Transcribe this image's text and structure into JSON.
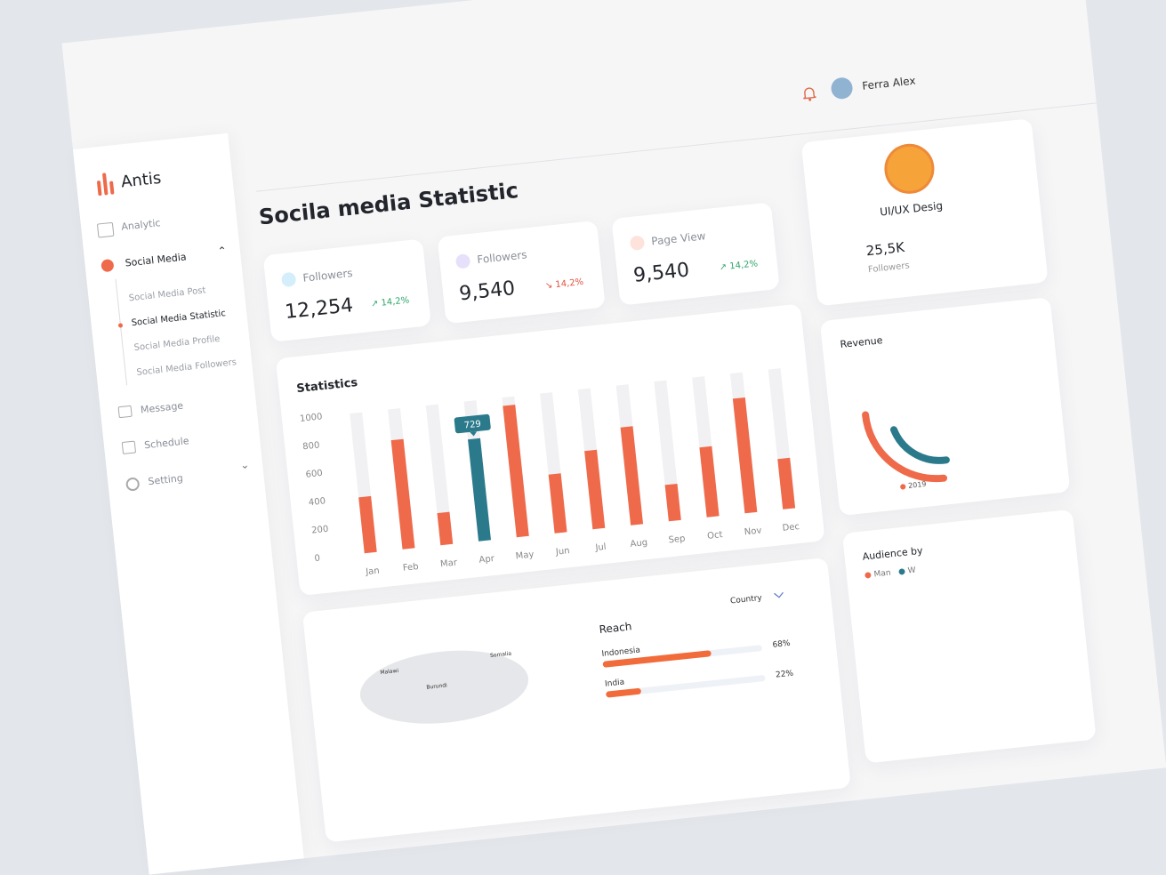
{
  "sidebar": {
    "brand": "Antis",
    "items": [
      "Analytic",
      "Social Media",
      "Message",
      "Schedule",
      "Setting"
    ],
    "subitems": [
      "Social Media Post",
      "Social Media Statistic",
      "Social Media Profile",
      "Social Media Followers"
    ]
  },
  "header": {
    "user": "Ferra Alex"
  },
  "page_title": "Socila media Statistic",
  "stats": [
    {
      "label": "Followers",
      "value": "12,254",
      "change": "14,2%"
    },
    {
      "label": "Followers",
      "value": "9,540",
      "change": "14,2%"
    },
    {
      "label": "Page View",
      "value": "9,540",
      "change": "14,2%"
    }
  ],
  "chart_data": {
    "type": "bar",
    "title": "Statistics",
    "categories": [
      "Jan",
      "Feb",
      "Mar",
      "Apr",
      "May",
      "Jun",
      "Jul",
      "Aug",
      "Sep",
      "Oct",
      "Nov",
      "Dec"
    ],
    "values": [
      400,
      780,
      230,
      729,
      940,
      420,
      560,
      700,
      260,
      500,
      820,
      360
    ],
    "color": "#ee6a4a",
    "active": 3,
    "active_color": "#2b7a8c",
    "track_color": "#f1f1f3",
    "ylim": [
      0,
      1000
    ],
    "yticks": [
      0,
      200,
      400,
      600,
      800,
      1000
    ]
  },
  "profile": {
    "role": "UI/UX Desig",
    "stat_value": "25,5K",
    "stat_label": "Followers"
  },
  "revenue": {
    "title": "Revenue",
    "legend": "2019"
  },
  "reach": {
    "title": "Reach",
    "filter": "Country",
    "categories": [
      "Indonesia",
      "India"
    ],
    "values": [
      68,
      22
    ],
    "value_labels": [
      "68%",
      "22%"
    ],
    "xlim": [
      0,
      100
    ],
    "map_labels": [
      "Malawi",
      "Somalia",
      "Burundi"
    ]
  },
  "audience": {
    "title": "Audience by",
    "legend": [
      "Man",
      "W"
    ]
  }
}
